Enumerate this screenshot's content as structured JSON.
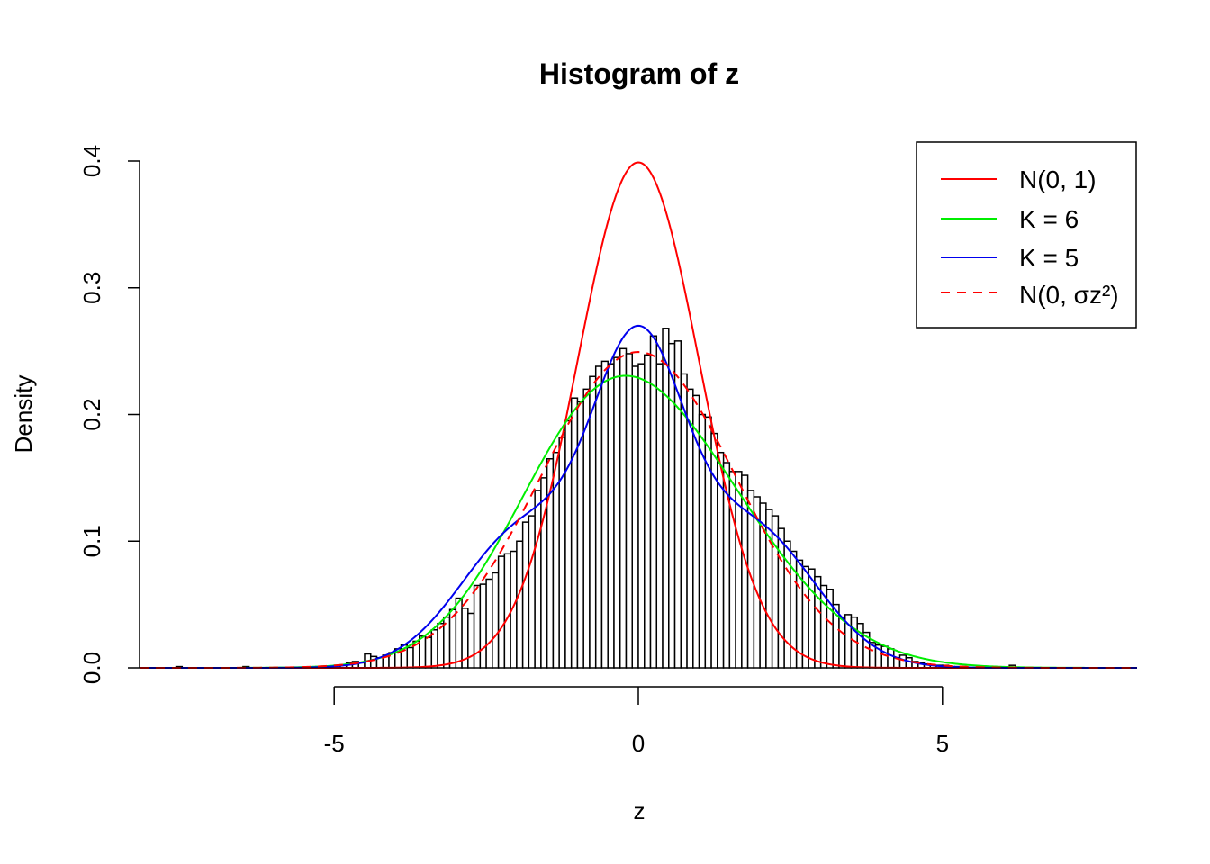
{
  "chart_data": {
    "type": "histogram",
    "title": "Histogram of z",
    "xlabel": "z",
    "ylabel": "Density",
    "xlim": [
      -8.2,
      8.2
    ],
    "ylim": [
      0,
      0.4
    ],
    "x_ticks": [
      -5,
      0,
      5
    ],
    "x_tick_labels": [
      "-5",
      "0",
      "5"
    ],
    "y_ticks": [
      0,
      0.1,
      0.2,
      0.3,
      0.4
    ],
    "y_tick_labels": [
      "0.0",
      "0.1",
      "0.2",
      "0.3",
      "0.4"
    ],
    "bin_width": 0.1,
    "bins": [
      {
        "x0": -7.6,
        "d": 0.001
      },
      {
        "x0": -6.5,
        "d": 0.001
      },
      {
        "x0": -5.3,
        "d": 0.001
      },
      {
        "x0": -5.0,
        "d": 0.002
      },
      {
        "x0": -4.9,
        "d": 0.002
      },
      {
        "x0": -4.8,
        "d": 0.004
      },
      {
        "x0": -4.7,
        "d": 0.005
      },
      {
        "x0": -4.6,
        "d": 0.004
      },
      {
        "x0": -4.5,
        "d": 0.011
      },
      {
        "x0": -4.4,
        "d": 0.009
      },
      {
        "x0": -4.3,
        "d": 0.008
      },
      {
        "x0": -4.2,
        "d": 0.01
      },
      {
        "x0": -4.1,
        "d": 0.012
      },
      {
        "x0": -4.0,
        "d": 0.015
      },
      {
        "x0": -3.9,
        "d": 0.018
      },
      {
        "x0": -3.8,
        "d": 0.016
      },
      {
        "x0": -3.7,
        "d": 0.021
      },
      {
        "x0": -3.6,
        "d": 0.025
      },
      {
        "x0": -3.5,
        "d": 0.024
      },
      {
        "x0": -3.4,
        "d": 0.03
      },
      {
        "x0": -3.3,
        "d": 0.035
      },
      {
        "x0": -3.2,
        "d": 0.04
      },
      {
        "x0": -3.1,
        "d": 0.046
      },
      {
        "x0": -3.0,
        "d": 0.055
      },
      {
        "x0": -2.9,
        "d": 0.047
      },
      {
        "x0": -2.8,
        "d": 0.043
      },
      {
        "x0": -2.7,
        "d": 0.065
      },
      {
        "x0": -2.6,
        "d": 0.066
      },
      {
        "x0": -2.5,
        "d": 0.07
      },
      {
        "x0": -2.4,
        "d": 0.075
      },
      {
        "x0": -2.3,
        "d": 0.088
      },
      {
        "x0": -2.2,
        "d": 0.09
      },
      {
        "x0": -2.1,
        "d": 0.092
      },
      {
        "x0": -2.0,
        "d": 0.1
      },
      {
        "x0": -1.9,
        "d": 0.115
      },
      {
        "x0": -1.8,
        "d": 0.12
      },
      {
        "x0": -1.7,
        "d": 0.14
      },
      {
        "x0": -1.6,
        "d": 0.15
      },
      {
        "x0": -1.5,
        "d": 0.165
      },
      {
        "x0": -1.4,
        "d": 0.17
      },
      {
        "x0": -1.3,
        "d": 0.182
      },
      {
        "x0": -1.2,
        "d": 0.195
      },
      {
        "x0": -1.1,
        "d": 0.213
      },
      {
        "x0": -1.0,
        "d": 0.21
      },
      {
        "x0": -0.9,
        "d": 0.22
      },
      {
        "x0": -0.8,
        "d": 0.23
      },
      {
        "x0": -0.7,
        "d": 0.238
      },
      {
        "x0": -0.6,
        "d": 0.242
      },
      {
        "x0": -0.5,
        "d": 0.24
      },
      {
        "x0": -0.4,
        "d": 0.245
      },
      {
        "x0": -0.3,
        "d": 0.252
      },
      {
        "x0": -0.2,
        "d": 0.248
      },
      {
        "x0": -0.1,
        "d": 0.238
      },
      {
        "x0": 0.0,
        "d": 0.24
      },
      {
        "x0": 0.1,
        "d": 0.247
      },
      {
        "x0": 0.2,
        "d": 0.262
      },
      {
        "x0": 0.3,
        "d": 0.24
      },
      {
        "x0": 0.4,
        "d": 0.268
      },
      {
        "x0": 0.5,
        "d": 0.256
      },
      {
        "x0": 0.6,
        "d": 0.258
      },
      {
        "x0": 0.7,
        "d": 0.232
      },
      {
        "x0": 0.8,
        "d": 0.22
      },
      {
        "x0": 0.9,
        "d": 0.215
      },
      {
        "x0": 1.0,
        "d": 0.2
      },
      {
        "x0": 1.1,
        "d": 0.198
      },
      {
        "x0": 1.2,
        "d": 0.185
      },
      {
        "x0": 1.3,
        "d": 0.17
      },
      {
        "x0": 1.4,
        "d": 0.162
      },
      {
        "x0": 1.5,
        "d": 0.155
      },
      {
        "x0": 1.6,
        "d": 0.155
      },
      {
        "x0": 1.7,
        "d": 0.152
      },
      {
        "x0": 1.8,
        "d": 0.14
      },
      {
        "x0": 1.9,
        "d": 0.135
      },
      {
        "x0": 2.0,
        "d": 0.13
      },
      {
        "x0": 2.1,
        "d": 0.125
      },
      {
        "x0": 2.2,
        "d": 0.12
      },
      {
        "x0": 2.3,
        "d": 0.11
      },
      {
        "x0": 2.4,
        "d": 0.1
      },
      {
        "x0": 2.5,
        "d": 0.092
      },
      {
        "x0": 2.6,
        "d": 0.085
      },
      {
        "x0": 2.7,
        "d": 0.08
      },
      {
        "x0": 2.8,
        "d": 0.078
      },
      {
        "x0": 2.9,
        "d": 0.072
      },
      {
        "x0": 3.0,
        "d": 0.065
      },
      {
        "x0": 3.1,
        "d": 0.062
      },
      {
        "x0": 3.2,
        "d": 0.05
      },
      {
        "x0": 3.3,
        "d": 0.04
      },
      {
        "x0": 3.4,
        "d": 0.042
      },
      {
        "x0": 3.5,
        "d": 0.04
      },
      {
        "x0": 3.6,
        "d": 0.035
      },
      {
        "x0": 3.7,
        "d": 0.028
      },
      {
        "x0": 3.8,
        "d": 0.02
      },
      {
        "x0": 3.9,
        "d": 0.018
      },
      {
        "x0": 4.0,
        "d": 0.017
      },
      {
        "x0": 4.1,
        "d": 0.015
      },
      {
        "x0": 4.2,
        "d": 0.008
      },
      {
        "x0": 4.3,
        "d": 0.01
      },
      {
        "x0": 4.4,
        "d": 0.008
      },
      {
        "x0": 4.5,
        "d": 0.005
      },
      {
        "x0": 4.6,
        "d": 0.004
      },
      {
        "x0": 4.7,
        "d": 0.003
      },
      {
        "x0": 4.8,
        "d": 0.002
      },
      {
        "x0": 4.9,
        "d": 0.002
      },
      {
        "x0": 5.0,
        "d": 0.002
      },
      {
        "x0": 5.1,
        "d": 0.001
      },
      {
        "x0": 5.2,
        "d": 0.001
      },
      {
        "x0": 5.3,
        "d": 0.001
      },
      {
        "x0": 6.1,
        "d": 0.002
      }
    ],
    "curves": [
      {
        "name": "N(0, 1)",
        "color": "#ff0000",
        "dash": false,
        "kind": "normal",
        "sd": 1.0
      },
      {
        "name": "K = 6",
        "color": "#00ee00",
        "dash": false,
        "kind": "mixture",
        "components": [
          {
            "w": 0.35,
            "mu": -0.9,
            "sd": 1.35
          },
          {
            "w": 0.65,
            "mu": 0.5,
            "sd": 1.7
          }
        ]
      },
      {
        "name": "K = 5",
        "color": "#0000ee",
        "dash": false,
        "kind": "mixture",
        "components": [
          {
            "w": 0.42,
            "mu": 0.0,
            "sd": 0.75
          },
          {
            "w": 0.29,
            "mu": -1.85,
            "sd": 1.05
          },
          {
            "w": 0.29,
            "mu": 1.85,
            "sd": 1.05
          }
        ]
      },
      {
        "name": "N(0, σz²)",
        "color": "#ff0000",
        "dash": true,
        "kind": "normal",
        "sd": 1.6
      }
    ],
    "legend": {
      "position": "top-right"
    }
  }
}
